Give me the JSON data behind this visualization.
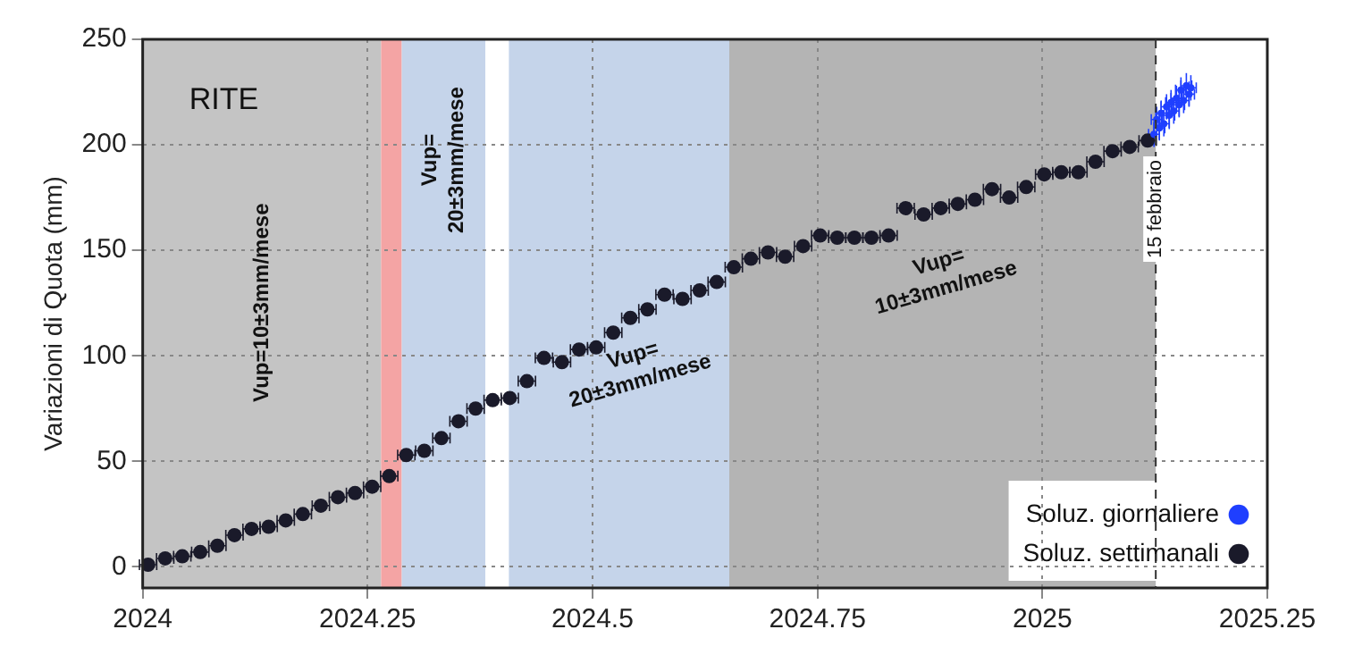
{
  "chart_data": {
    "type": "scatter",
    "ylabel": "Variazioni di Quota (mm)",
    "annotations": [
      "RITE"
    ],
    "xlim": [
      2024,
      2025.25
    ],
    "xticks": [
      2024,
      2024.25,
      2024.5,
      2024.75,
      2025,
      2025.25
    ],
    "ylim": [
      -10,
      250
    ],
    "yticks": [
      0,
      50,
      100,
      150,
      200,
      250
    ],
    "grid": true,
    "legend": "bottom right",
    "bands": [
      {
        "axis": "x",
        "from": 2024,
        "to": 2024.265,
        "color": "#c4c4c4",
        "label": "Vup=10±3mm/mese"
      },
      {
        "axis": "x",
        "from": 2024.265,
        "to": 2024.288,
        "color": "#f4a4a4"
      },
      {
        "axis": "x",
        "from": 2024.288,
        "to": 2024.381,
        "color": "#c5d4ea",
        "label": "Vup=\n20±3mm/mese"
      },
      {
        "axis": "x",
        "from": 2024.381,
        "to": 2024.407,
        "color": "#ffffff"
      },
      {
        "axis": "x",
        "from": 2024.407,
        "to": 2024.652,
        "color": "#c5d4ea",
        "label": "Vup=\n20±3mm/mese"
      },
      {
        "axis": "x",
        "from": 2024.652,
        "to": 2025.126,
        "color": "#b4b4b4",
        "label": "Vup=\n10±3mm/mese"
      }
    ],
    "ref_lines": [
      {
        "axis": "x",
        "value": 2025.126,
        "label": "15 febbraio",
        "line_style": "dashed",
        "color": "#333333"
      }
    ],
    "series": [
      {
        "name": "Soluz. giornaliere",
        "color": "#1f3fff",
        "x": [
          2025.124,
          2025.127,
          2025.13,
          2025.132,
          2025.135,
          2025.138,
          2025.141,
          2025.143,
          2025.146,
          2025.149,
          2025.152,
          2025.154,
          2025.157,
          2025.16,
          2025.163,
          2025.165
        ],
        "values": [
          205,
          212,
          208,
          215,
          210,
          218,
          214,
          220,
          216,
          222,
          219,
          226,
          221,
          228,
          224,
          227
        ],
        "errors": [
          6,
          6,
          6,
          6,
          6,
          6,
          6,
          6,
          6,
          6,
          6,
          6,
          6,
          6,
          6,
          6
        ],
        "xerrors": [
          0.006,
          0.006,
          0.006,
          0.006,
          0.006,
          0.006,
          0.006,
          0.006,
          0.006,
          0.006,
          0.006,
          0.006,
          0.006,
          0.006,
          0.006,
          0.006
        ]
      },
      {
        "name": "Soluz. settimanali",
        "color": "#1a1a2a",
        "x": [
          2024.006,
          2024.025,
          2024.044,
          2024.064,
          2024.083,
          2024.102,
          2024.121,
          2024.14,
          2024.159,
          2024.178,
          2024.198,
          2024.217,
          2024.236,
          2024.255,
          2024.274,
          2024.293,
          2024.313,
          2024.332,
          2024.351,
          2024.37,
          2024.389,
          2024.408,
          2024.427,
          2024.446,
          2024.466,
          2024.485,
          2024.504,
          2024.523,
          2024.542,
          2024.561,
          2024.58,
          2024.6,
          2024.619,
          2024.638,
          2024.657,
          2024.676,
          2024.695,
          2024.714,
          2024.734,
          2024.753,
          2024.772,
          2024.791,
          2024.81,
          2024.829,
          2024.848,
          2024.868,
          2024.887,
          2024.906,
          2024.925,
          2024.944,
          2024.963,
          2024.982,
          2025.002,
          2025.021,
          2025.04,
          2025.059,
          2025.078,
          2025.097,
          2025.117
        ],
        "values": [
          1,
          4,
          5,
          7,
          10,
          15,
          18,
          19,
          22,
          25,
          29,
          33,
          35,
          38,
          43,
          53,
          55,
          61,
          69,
          75,
          79,
          80,
          88,
          99,
          97,
          103,
          104,
          111,
          118,
          122,
          129,
          127,
          131,
          135,
          142,
          146,
          149,
          147,
          152,
          157,
          156,
          156,
          156,
          157,
          170,
          167,
          170,
          172,
          174,
          179,
          175,
          180,
          186,
          187,
          187,
          192,
          197,
          199,
          202
        ],
        "errors": [
          3,
          3,
          3,
          3,
          3,
          3,
          3,
          3,
          3,
          3,
          3,
          3,
          3,
          3,
          3,
          3,
          3,
          3,
          3,
          3,
          3,
          3,
          3,
          3,
          3,
          3,
          3,
          3,
          3,
          3,
          3,
          3,
          3,
          3,
          3,
          3,
          3,
          3,
          3,
          3,
          3,
          3,
          3,
          3,
          3,
          3,
          3,
          3,
          3,
          3,
          3,
          3,
          3,
          3,
          3,
          3,
          3,
          3,
          3
        ],
        "xerrors": [
          0.0096,
          0.0096,
          0.0096,
          0.0096,
          0.0096,
          0.0096,
          0.0096,
          0.0096,
          0.0096,
          0.0096,
          0.0096,
          0.0096,
          0.0096,
          0.0096,
          0.0096,
          0.0096,
          0.0096,
          0.0096,
          0.0096,
          0.0096,
          0.0096,
          0.0096,
          0.0096,
          0.0096,
          0.0096,
          0.0096,
          0.0096,
          0.0096,
          0.0096,
          0.0096,
          0.0096,
          0.0096,
          0.0096,
          0.0096,
          0.0096,
          0.0096,
          0.0096,
          0.0096,
          0.0096,
          0.0096,
          0.0096,
          0.0096,
          0.0096,
          0.0096,
          0.0096,
          0.0096,
          0.0096,
          0.0096,
          0.0096,
          0.0096,
          0.0096,
          0.0096,
          0.0096,
          0.0096,
          0.0096,
          0.0096,
          0.0096,
          0.0096,
          0.0096
        ]
      }
    ]
  }
}
